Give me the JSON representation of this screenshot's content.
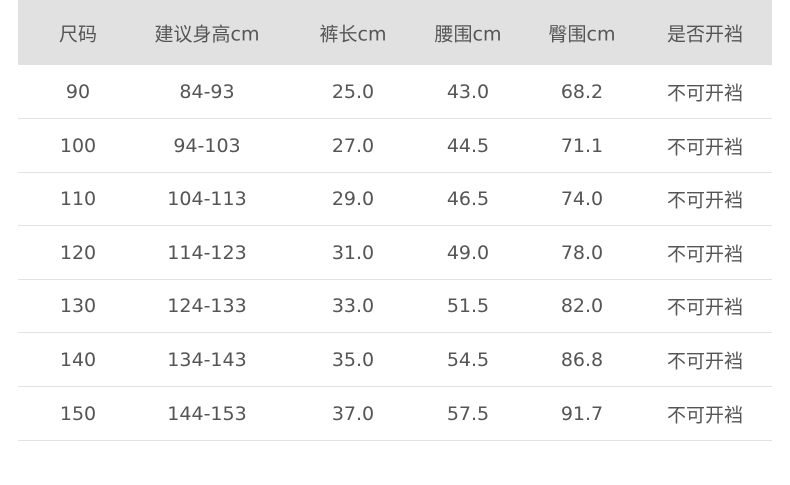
{
  "table": {
    "header": [
      "尺码",
      "建议身高cm",
      "裤长cm",
      "腰围cm",
      "臀围cm",
      "是否开裆"
    ],
    "rows": [
      [
        "90",
        "84-93",
        "25.0",
        "43.0",
        "68.2",
        "不可开裆"
      ],
      [
        "100",
        "94-103",
        "27.0",
        "44.5",
        "71.1",
        "不可开裆"
      ],
      [
        "110",
        "104-113",
        "29.0",
        "46.5",
        "74.0",
        "不可开裆"
      ],
      [
        "120",
        "114-123",
        "31.0",
        "49.0",
        "78.0",
        "不可开裆"
      ],
      [
        "130",
        "124-133",
        "33.0",
        "51.5",
        "82.0",
        "不可开裆"
      ],
      [
        "140",
        "134-143",
        "35.0",
        "54.5",
        "86.8",
        "不可开裆"
      ],
      [
        "150",
        "144-153",
        "37.0",
        "57.5",
        "91.7",
        "不可开裆"
      ]
    ]
  }
}
